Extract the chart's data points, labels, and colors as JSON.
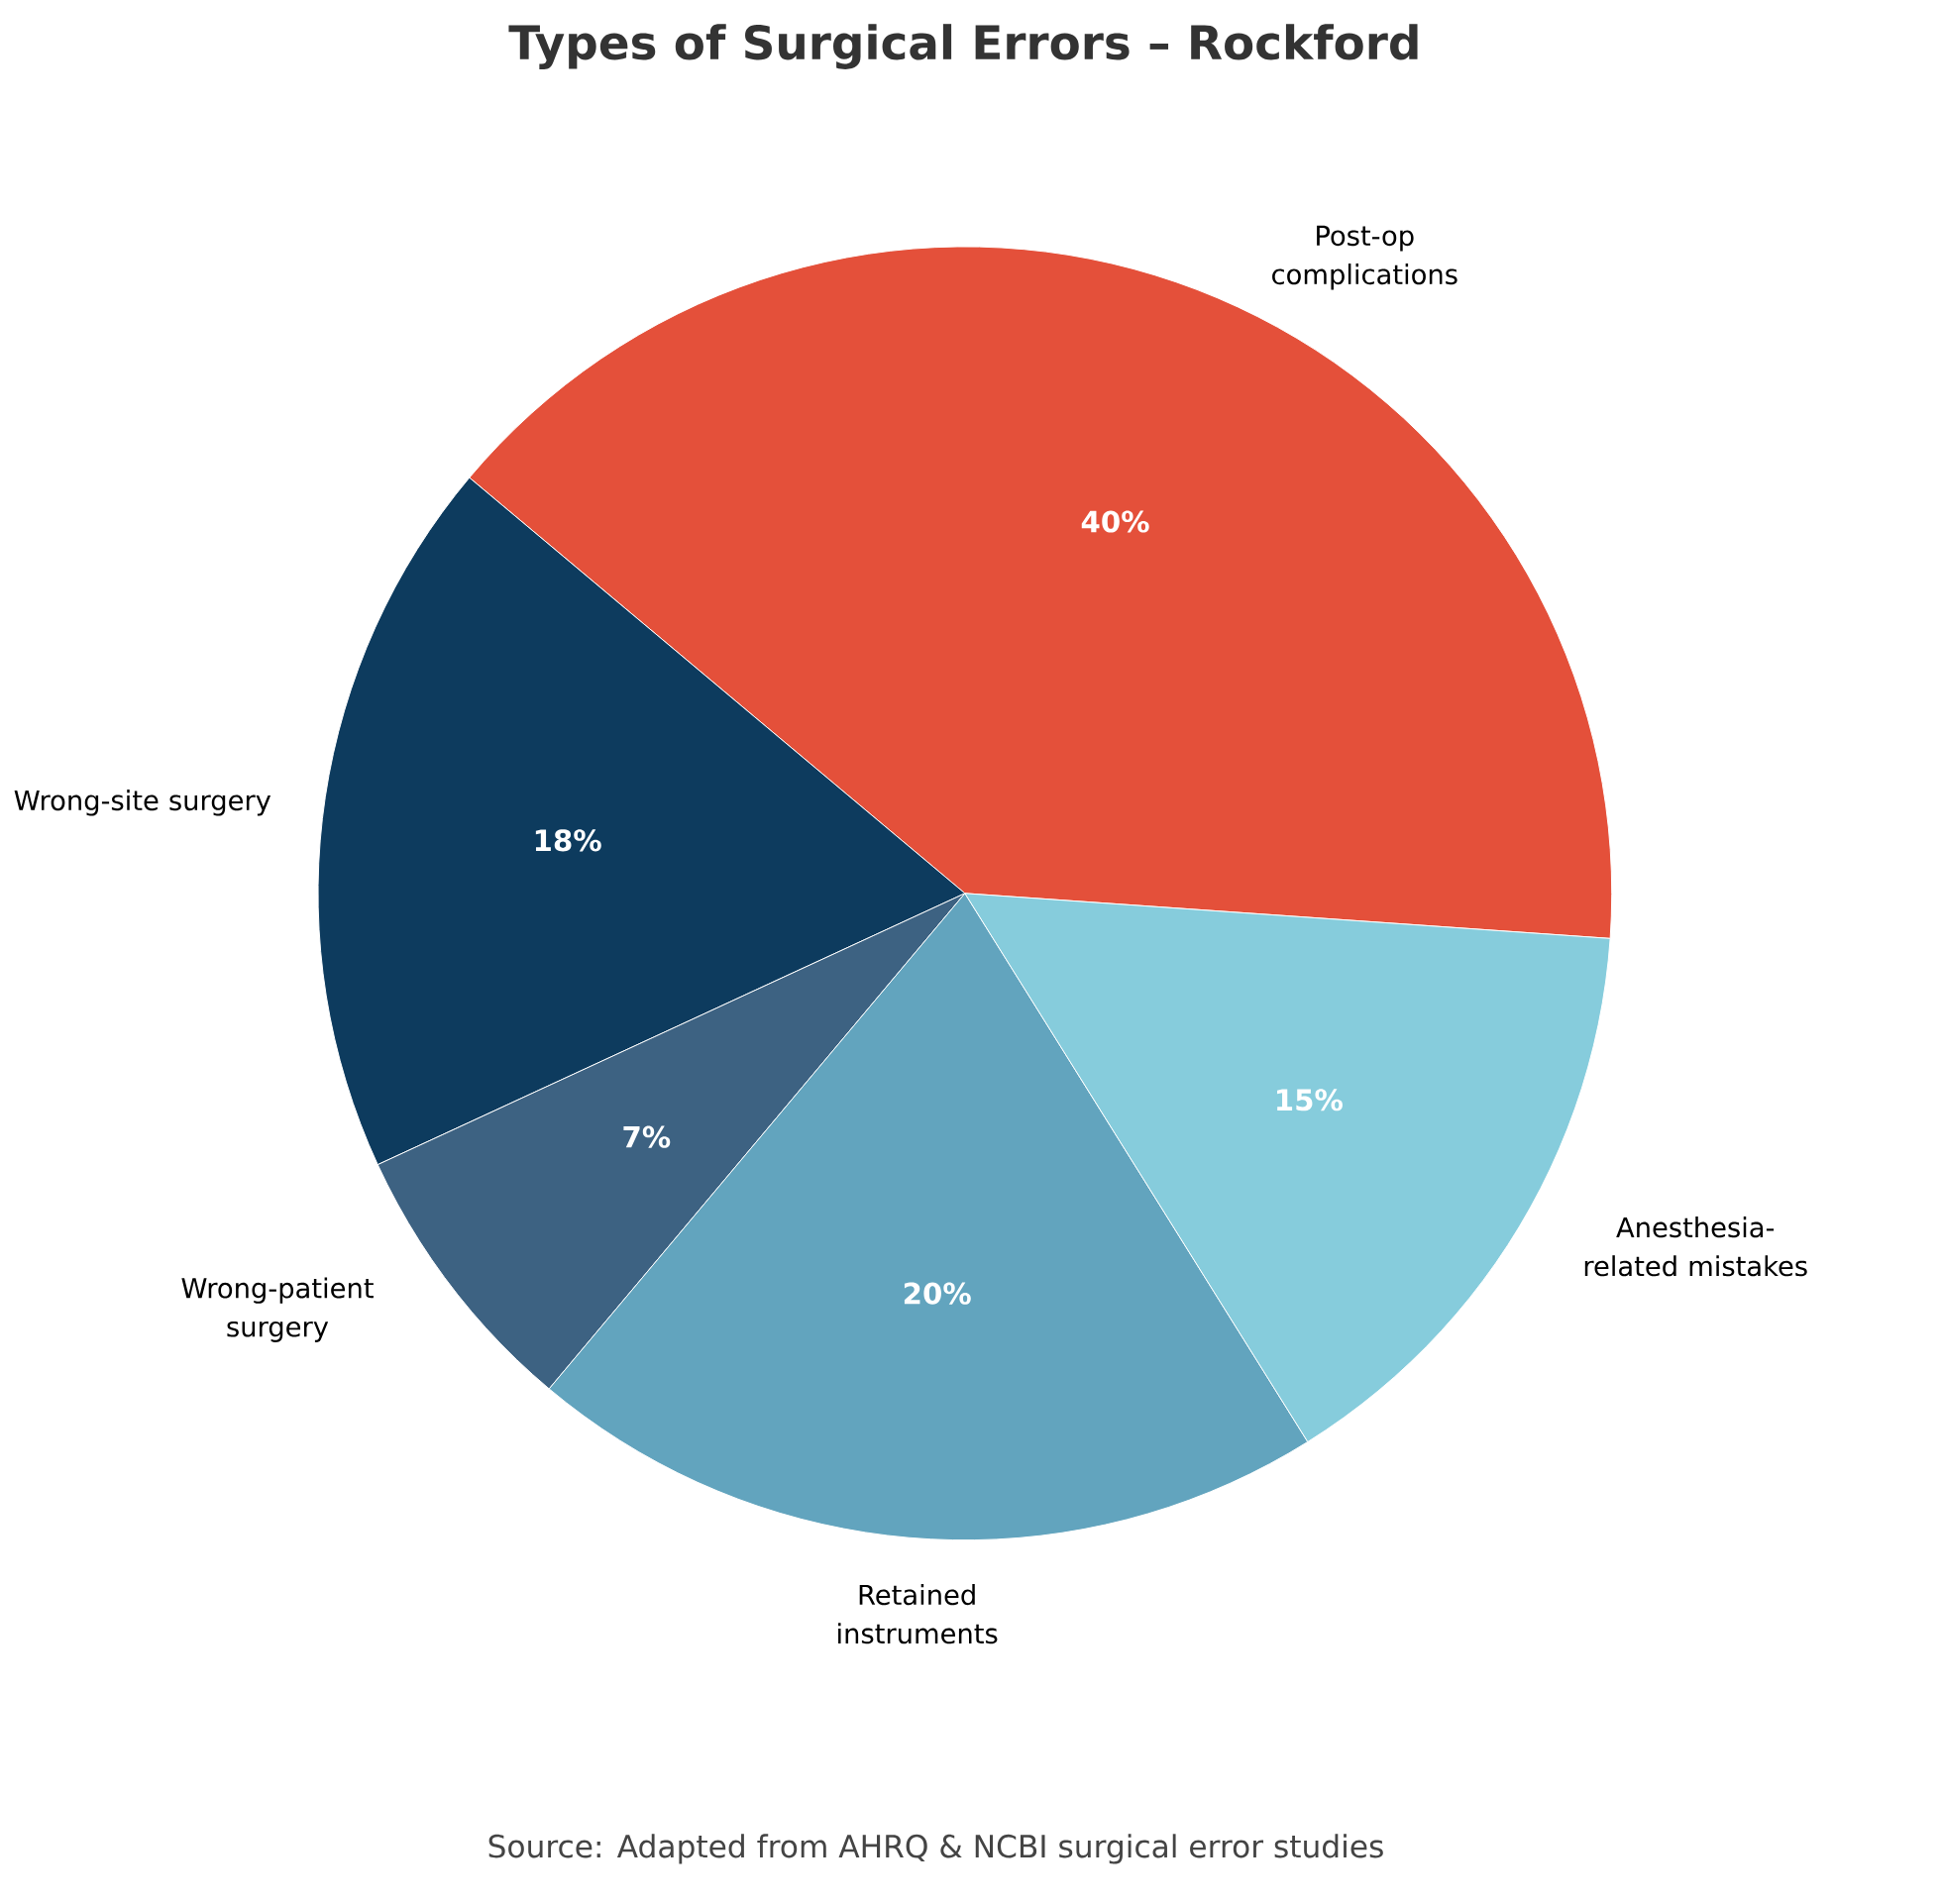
{
  "chart_data": {
    "type": "pie",
    "title": "Types of Surgical Errors – Rockford",
    "categories": [
      "Post-op complications",
      "Wrong-site surgery",
      "Wrong-patient surgery",
      "Retained instruments",
      "Anesthesia-related mistakes"
    ],
    "values": [
      40,
      18,
      7,
      20,
      15
    ],
    "colors": [
      "#e4503a",
      "#0d3b5e",
      "#3d6282",
      "#62a4be",
      "#86ccdc"
    ],
    "value_labels": [
      "40%",
      "18%",
      "7%",
      "20%",
      "15%"
    ],
    "annotations": [
      "Source: Adapted from AHRQ & NCBI surgical error studies"
    ]
  }
}
